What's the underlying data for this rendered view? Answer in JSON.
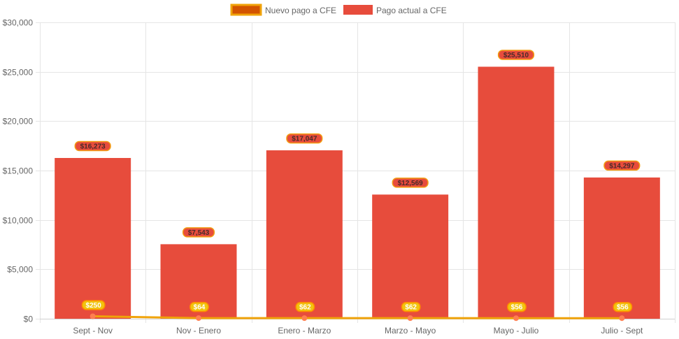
{
  "chart_data": {
    "type": "bar",
    "categories": [
      "Sept - Nov",
      "Nov - Enero",
      "Enero - Marzo",
      "Marzo - Mayo",
      "Mayo - Julio",
      "Julio - Sept"
    ],
    "ylim": [
      0,
      30000
    ],
    "yticks": [
      {
        "value": 0,
        "label": "$0"
      },
      {
        "value": 5000,
        "label": "$5,000"
      },
      {
        "value": 10000,
        "label": "$10,000"
      },
      {
        "value": 15000,
        "label": "$15,000"
      },
      {
        "value": 20000,
        "label": "$20,000"
      },
      {
        "value": 25000,
        "label": "$25,000"
      },
      {
        "value": 30000,
        "label": "$30,000"
      }
    ],
    "grid": true,
    "legend_position": "top-center",
    "series": [
      {
        "name": "Nuevo pago a CFE",
        "type": "line",
        "color": "#f0a30a",
        "legend_fill": "#d35400",
        "point_color": "#ff7f50",
        "values": [
          250,
          64,
          62,
          62,
          56,
          56
        ],
        "labels": [
          "$250",
          "$64",
          "$62",
          "$62",
          "$56",
          "$56"
        ]
      },
      {
        "name": "Pago actual a CFE",
        "type": "bar",
        "color": "#e74c3c",
        "values": [
          16273,
          7543,
          17047,
          12569,
          25510,
          14297
        ],
        "labels": [
          "$16,273",
          "$7,543",
          "$17,047",
          "$12,569",
          "$25,510",
          "$14,297"
        ]
      }
    ]
  }
}
